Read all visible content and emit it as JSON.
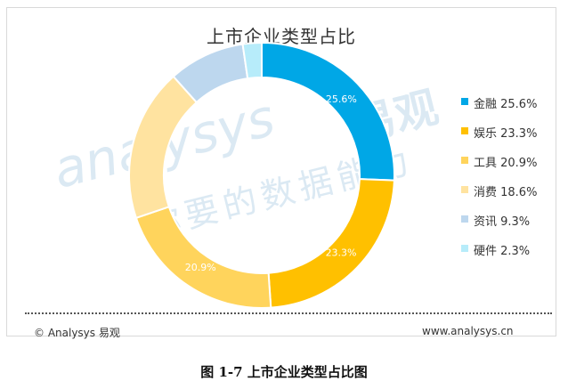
{
  "chart_data": {
    "type": "pie",
    "donut": true,
    "title": "上市企业类型占比",
    "slices": [
      {
        "label": "金融",
        "value": 25.6,
        "legend": "金融 25.6%",
        "data_label": "25.6%",
        "color": "#00a7e6"
      },
      {
        "label": "娱乐",
        "value": 23.3,
        "legend": "娱乐 23.3%",
        "data_label": "23.3%",
        "color": "#ffc000"
      },
      {
        "label": "工具",
        "value": 20.9,
        "legend": "工具 20.9%",
        "data_label": "20.9%",
        "color": "#ffd45c"
      },
      {
        "label": "消费",
        "value": 18.6,
        "legend": "消费 18.6%",
        "data_label": "",
        "color": "#ffe3a0"
      },
      {
        "label": "资讯",
        "value": 9.3,
        "legend": "资讯 9.3%",
        "data_label": "",
        "color": "#bdd7ee"
      },
      {
        "label": "硬件",
        "value": 2.3,
        "legend": "硬件 2.3%",
        "data_label": "",
        "color": "#b7ecfa"
      }
    ],
    "legend_position": "right"
  },
  "watermark": {
    "en": "analysys",
    "cn": "你要的数据能力",
    "brand": "易观"
  },
  "footer": {
    "left": "© Analysys 易观",
    "right": "www.analysys.cn"
  },
  "caption": "图 1-7 上市企业类型占比图"
}
